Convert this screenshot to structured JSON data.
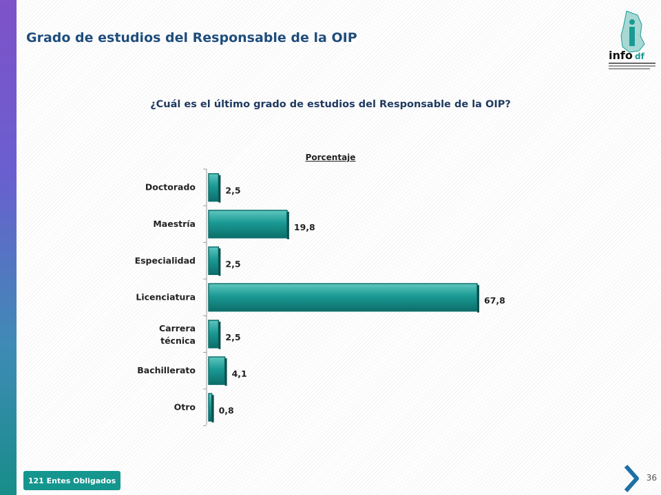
{
  "slide": {
    "title": "Grado de estudios del Responsable de la OIP",
    "question": "¿Cuál es el último grado de estudios del Responsable de la OIP?",
    "footer_badge": "121 Entes Obligados",
    "page_number": "36"
  },
  "logo": {
    "text": "info",
    "suffix": "df"
  },
  "colors": {
    "bar": "#1a9a94",
    "bar_dark": "#0d6e6a",
    "title": "#1f4d7c",
    "badge": "#14968f"
  },
  "chart_data": {
    "type": "bar",
    "orientation": "horizontal",
    "title": "Porcentaje",
    "categories": [
      "Doctorado",
      "Maestría",
      "Especialidad",
      "Licenciatura",
      "Carrera técnica",
      "Bachillerato",
      "Otro"
    ],
    "values": [
      2.5,
      19.8,
      2.5,
      67.8,
      2.5,
      4.1,
      0.8
    ],
    "value_labels": [
      "2,5",
      "19,8",
      "2,5",
      "67,8",
      "2,5",
      "4,1",
      "0,8"
    ],
    "xlim": [
      0,
      70
    ],
    "grid": false
  }
}
